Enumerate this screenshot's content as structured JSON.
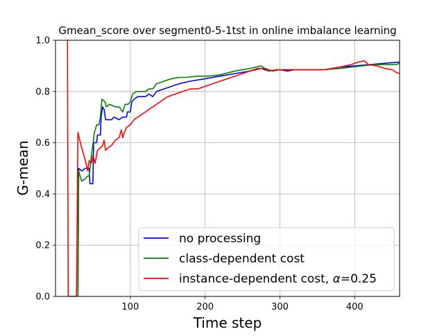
{
  "chart_data": {
    "type": "line",
    "title": "Gmean_score over segment0-5-1tst in online imbalance learning",
    "xlabel": "Time step",
    "ylabel": "G-mean",
    "xlim": [
      0,
      460
    ],
    "ylim": [
      0.0,
      1.0
    ],
    "xticks": [
      100,
      200,
      300,
      400
    ],
    "xtick_labels": [
      "100",
      "200",
      "300",
      "400"
    ],
    "yticks": [
      0.0,
      0.2,
      0.4,
      0.6,
      0.8,
      1.0
    ],
    "ytick_labels": [
      "0.0",
      "0.2",
      "0.4",
      "0.6",
      "0.8",
      "1.0"
    ],
    "grid": true,
    "legend_position": "lower-right",
    "series": [
      {
        "name": "no processing",
        "color": "#0000ff",
        "points": [
          [
            18,
            0.0
          ],
          [
            30,
            0.0
          ],
          [
            31,
            0.5
          ],
          [
            35,
            0.49
          ],
          [
            40,
            0.5
          ],
          [
            45,
            0.5
          ],
          [
            46,
            0.44
          ],
          [
            50,
            0.44
          ],
          [
            51,
            0.6
          ],
          [
            55,
            0.6
          ],
          [
            56,
            0.63
          ],
          [
            60,
            0.63
          ],
          [
            61,
            0.7
          ],
          [
            63,
            0.74
          ],
          [
            65,
            0.73
          ],
          [
            67,
            0.69
          ],
          [
            75,
            0.69
          ],
          [
            78,
            0.7
          ],
          [
            85,
            0.69
          ],
          [
            90,
            0.7
          ],
          [
            95,
            0.7
          ],
          [
            96,
            0.72
          ],
          [
            100,
            0.72
          ],
          [
            102,
            0.76
          ],
          [
            105,
            0.77
          ],
          [
            110,
            0.78
          ],
          [
            120,
            0.78
          ],
          [
            125,
            0.79
          ],
          [
            130,
            0.78
          ],
          [
            135,
            0.8
          ],
          [
            145,
            0.81
          ],
          [
            155,
            0.82
          ],
          [
            165,
            0.83
          ],
          [
            180,
            0.84
          ],
          [
            200,
            0.85
          ],
          [
            220,
            0.86
          ],
          [
            240,
            0.87
          ],
          [
            260,
            0.88
          ],
          [
            275,
            0.89
          ],
          [
            285,
            0.88
          ],
          [
            300,
            0.885
          ],
          [
            310,
            0.88
          ],
          [
            320,
            0.885
          ],
          [
            340,
            0.885
          ],
          [
            360,
            0.885
          ],
          [
            380,
            0.895
          ],
          [
            400,
            0.9
          ],
          [
            420,
            0.905
          ],
          [
            440,
            0.91
          ],
          [
            460,
            0.915
          ]
        ]
      },
      {
        "name": "class-dependent cost",
        "color": "#008000",
        "points": [
          [
            18,
            0.0
          ],
          [
            30,
            0.0
          ],
          [
            31,
            0.49
          ],
          [
            35,
            0.45
          ],
          [
            40,
            0.46
          ],
          [
            43,
            0.47
          ],
          [
            45,
            0.47
          ],
          [
            48,
            0.55
          ],
          [
            52,
            0.64
          ],
          [
            55,
            0.67
          ],
          [
            58,
            0.67
          ],
          [
            60,
            0.7
          ],
          [
            62,
            0.77
          ],
          [
            66,
            0.76
          ],
          [
            68,
            0.74
          ],
          [
            72,
            0.75
          ],
          [
            80,
            0.74
          ],
          [
            85,
            0.74
          ],
          [
            90,
            0.72
          ],
          [
            93,
            0.75
          ],
          [
            97,
            0.75
          ],
          [
            100,
            0.76
          ],
          [
            103,
            0.79
          ],
          [
            108,
            0.8
          ],
          [
            115,
            0.8
          ],
          [
            120,
            0.8
          ],
          [
            125,
            0.81
          ],
          [
            130,
            0.81
          ],
          [
            135,
            0.83
          ],
          [
            145,
            0.84
          ],
          [
            155,
            0.85
          ],
          [
            165,
            0.855
          ],
          [
            175,
            0.855
          ],
          [
            190,
            0.86
          ],
          [
            205,
            0.86
          ],
          [
            220,
            0.865
          ],
          [
            240,
            0.88
          ],
          [
            260,
            0.89
          ],
          [
            275,
            0.9
          ],
          [
            285,
            0.88
          ],
          [
            295,
            0.885
          ],
          [
            305,
            0.885
          ],
          [
            320,
            0.885
          ],
          [
            340,
            0.885
          ],
          [
            360,
            0.885
          ],
          [
            380,
            0.89
          ],
          [
            395,
            0.895
          ],
          [
            410,
            0.9
          ],
          [
            425,
            0.905
          ],
          [
            440,
            0.905
          ],
          [
            455,
            0.905
          ],
          [
            460,
            0.91
          ]
        ]
      },
      {
        "name": "instance-dependent cost, α=0.25",
        "color": "#ff0000",
        "points": [
          [
            16,
            1.0
          ],
          [
            17,
            0.0
          ],
          [
            28,
            0.0
          ],
          [
            30,
            0.64
          ],
          [
            35,
            0.58
          ],
          [
            40,
            0.53
          ],
          [
            43,
            0.49
          ],
          [
            45,
            0.53
          ],
          [
            48,
            0.52
          ],
          [
            50,
            0.55
          ],
          [
            53,
            0.52
          ],
          [
            56,
            0.57
          ],
          [
            60,
            0.58
          ],
          [
            63,
            0.59
          ],
          [
            65,
            0.61
          ],
          [
            67,
            0.57
          ],
          [
            70,
            0.58
          ],
          [
            75,
            0.59
          ],
          [
            80,
            0.61
          ],
          [
            85,
            0.62
          ],
          [
            88,
            0.65
          ],
          [
            90,
            0.62
          ],
          [
            92,
            0.64
          ],
          [
            95,
            0.66
          ],
          [
            100,
            0.67
          ],
          [
            105,
            0.69
          ],
          [
            110,
            0.7
          ],
          [
            115,
            0.71
          ],
          [
            120,
            0.72
          ],
          [
            125,
            0.73
          ],
          [
            130,
            0.74
          ],
          [
            135,
            0.75
          ],
          [
            140,
            0.76
          ],
          [
            150,
            0.78
          ],
          [
            160,
            0.79
          ],
          [
            170,
            0.8
          ],
          [
            180,
            0.81
          ],
          [
            190,
            0.81
          ],
          [
            200,
            0.82
          ],
          [
            210,
            0.83
          ],
          [
            220,
            0.84
          ],
          [
            230,
            0.85
          ],
          [
            240,
            0.86
          ],
          [
            250,
            0.87
          ],
          [
            260,
            0.88
          ],
          [
            270,
            0.89
          ],
          [
            280,
            0.89
          ],
          [
            290,
            0.88
          ],
          [
            300,
            0.885
          ],
          [
            320,
            0.885
          ],
          [
            340,
            0.885
          ],
          [
            360,
            0.885
          ],
          [
            380,
            0.895
          ],
          [
            395,
            0.905
          ],
          [
            405,
            0.915
          ],
          [
            413,
            0.92
          ],
          [
            418,
            0.905
          ],
          [
            430,
            0.9
          ],
          [
            440,
            0.89
          ],
          [
            450,
            0.885
          ],
          [
            455,
            0.875
          ],
          [
            460,
            0.87
          ]
        ]
      }
    ],
    "legend": [
      {
        "label": "no processing",
        "color": "#0000ff"
      },
      {
        "label": "class-dependent cost",
        "color": "#008000"
      },
      {
        "label": "instance-dependent cost, ",
        "label_math": "α",
        "label_suffix": "=0.25",
        "color": "#ff0000"
      }
    ]
  }
}
